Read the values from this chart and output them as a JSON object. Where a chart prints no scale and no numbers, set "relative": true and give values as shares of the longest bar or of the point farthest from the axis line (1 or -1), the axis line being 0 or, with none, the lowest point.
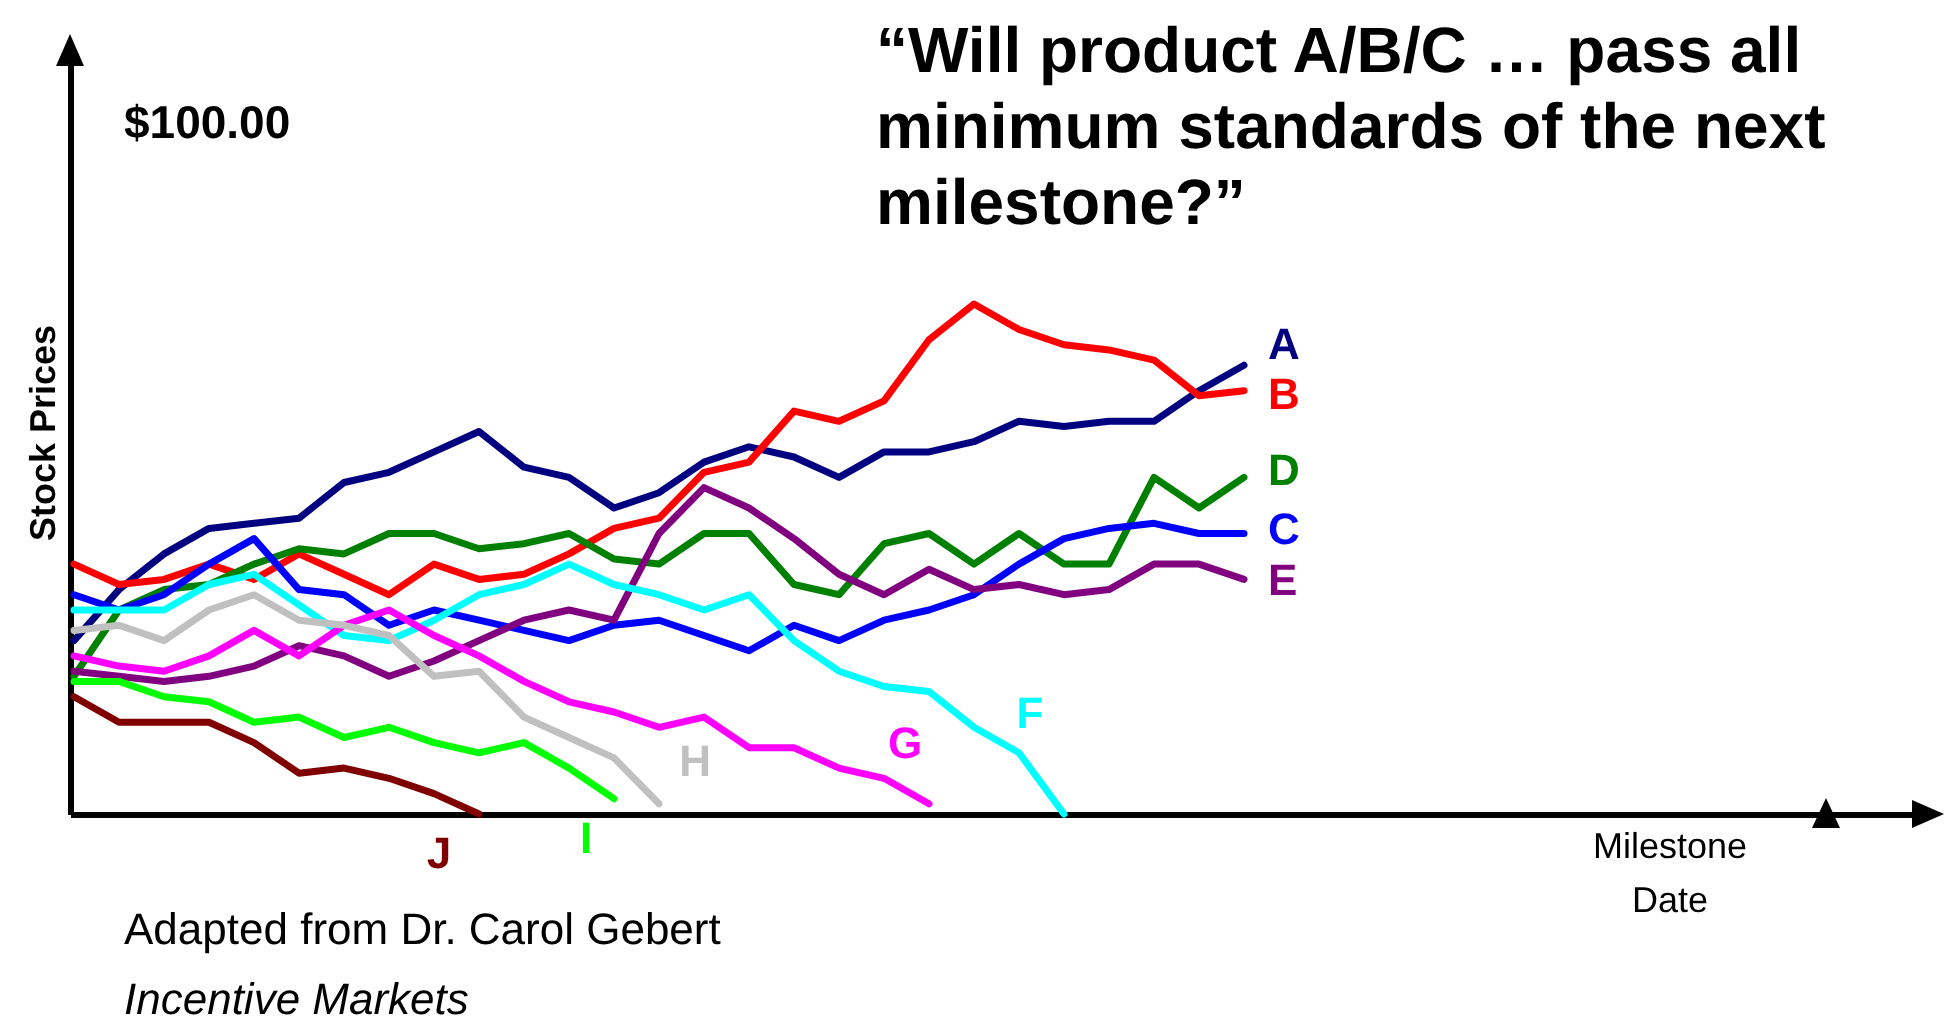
{
  "chart_data": {
    "type": "line",
    "title": "“Will product A/B/C … pass all minimum standards of the next milestone?”",
    "ylabel": "Stock Prices",
    "relative": true,
    "annotations": [
      "$100.00",
      "Adapted from Dr. Carol Gebert",
      "Incentive Markets",
      "Milestone Date"
    ],
    "categories": [
      null,
      null,
      null,
      null,
      null,
      null,
      null,
      null,
      null,
      null,
      null,
      null,
      null,
      null,
      null,
      null,
      null,
      null,
      null,
      null,
      null,
      null,
      null,
      null,
      null,
      null,
      null
    ],
    "series": [
      {
        "name": "A",
        "color": "#000080",
        "values": [
          0.34,
          0.44,
          0.51,
          0.56,
          0.57,
          0.58,
          0.65,
          0.67,
          0.71,
          0.75,
          0.68,
          0.66,
          0.6,
          0.63,
          0.69,
          0.72,
          0.7,
          0.66,
          0.71,
          0.71,
          0.73,
          0.77,
          0.76,
          0.77,
          0.77,
          0.83,
          0.88
        ]
      },
      {
        "name": "B",
        "color": "#ff0000",
        "values": [
          0.49,
          0.45,
          0.46,
          0.49,
          0.46,
          0.51,
          0.47,
          0.43,
          0.49,
          0.46,
          0.47,
          0.51,
          0.56,
          0.58,
          0.67,
          0.69,
          0.79,
          0.77,
          0.81,
          0.93,
          1.0,
          0.95,
          0.92,
          0.91,
          0.89,
          0.82,
          0.83
        ]
      },
      {
        "name": "D",
        "color": "#008000",
        "values": [
          0.27,
          0.4,
          0.44,
          0.45,
          0.49,
          0.52,
          0.51,
          0.55,
          0.55,
          0.52,
          0.53,
          0.55,
          0.5,
          0.49,
          0.55,
          0.55,
          0.45,
          0.43,
          0.53,
          0.55,
          0.49,
          0.55,
          0.49,
          0.49,
          0.66,
          0.6,
          0.66
        ]
      },
      {
        "name": "C",
        "color": "#0000ff",
        "values": [
          0.43,
          0.4,
          0.43,
          0.49,
          0.54,
          0.44,
          0.43,
          0.37,
          0.4,
          0.38,
          0.36,
          0.34,
          0.37,
          0.38,
          0.35,
          0.32,
          0.37,
          0.34,
          0.38,
          0.4,
          0.43,
          0.49,
          0.54,
          0.56,
          0.57,
          0.55,
          0.55
        ]
      },
      {
        "name": "E",
        "color": "#800080",
        "values": [
          0.28,
          0.27,
          0.26,
          0.27,
          0.29,
          0.33,
          0.31,
          0.27,
          0.3,
          0.34,
          0.38,
          0.4,
          0.38,
          0.55,
          0.64,
          0.6,
          0.54,
          0.47,
          0.43,
          0.48,
          0.44,
          0.45,
          0.43,
          0.44,
          0.49,
          0.49,
          0.46
        ]
      },
      {
        "name": "F",
        "color": "#00ffff",
        "values": [
          0.4,
          0.4,
          0.4,
          0.45,
          0.47,
          0.41,
          0.35,
          0.34,
          0.38,
          0.43,
          0.45,
          0.49,
          0.45,
          0.43,
          0.4,
          0.43,
          0.34,
          0.28,
          0.25,
          0.24,
          0.17,
          0.12,
          0,
          null,
          null,
          null,
          null
        ]
      },
      {
        "name": "G",
        "color": "#ff00ff",
        "values": [
          0.31,
          0.29,
          0.28,
          0.31,
          0.36,
          0.31,
          0.37,
          0.4,
          0.35,
          0.31,
          0.26,
          0.22,
          0.2,
          0.17,
          0.19,
          0.13,
          0.13,
          0.09,
          0.07,
          0.02,
          null,
          null,
          null,
          null,
          null,
          null,
          null
        ]
      },
      {
        "name": "H",
        "color": "#c0c0c0",
        "values": [
          0.36,
          0.37,
          0.34,
          0.4,
          0.43,
          0.38,
          0.37,
          0.35,
          0.27,
          0.28,
          0.19,
          0.15,
          0.11,
          0.02,
          null,
          null,
          null,
          null,
          null,
          null,
          null,
          null,
          null,
          null,
          null,
          null,
          null
        ]
      },
      {
        "name": "I",
        "color": "#00ff00",
        "values": [
          0.26,
          0.26,
          0.23,
          0.22,
          0.18,
          0.19,
          0.15,
          0.17,
          0.14,
          0.12,
          0.14,
          0.09,
          0.03,
          null,
          null,
          null,
          null,
          null,
          null,
          null,
          null,
          null,
          null,
          null,
          null,
          null,
          null
        ]
      },
      {
        "name": "J",
        "color": "#800000",
        "values": [
          0.23,
          0.18,
          0.18,
          0.18,
          0.14,
          0.08,
          0.09,
          0.07,
          0.04,
          0,
          null,
          null,
          null,
          null,
          null,
          null,
          null,
          null,
          null,
          null,
          null,
          null,
          null,
          null,
          null,
          null,
          null
        ]
      }
    ]
  }
}
